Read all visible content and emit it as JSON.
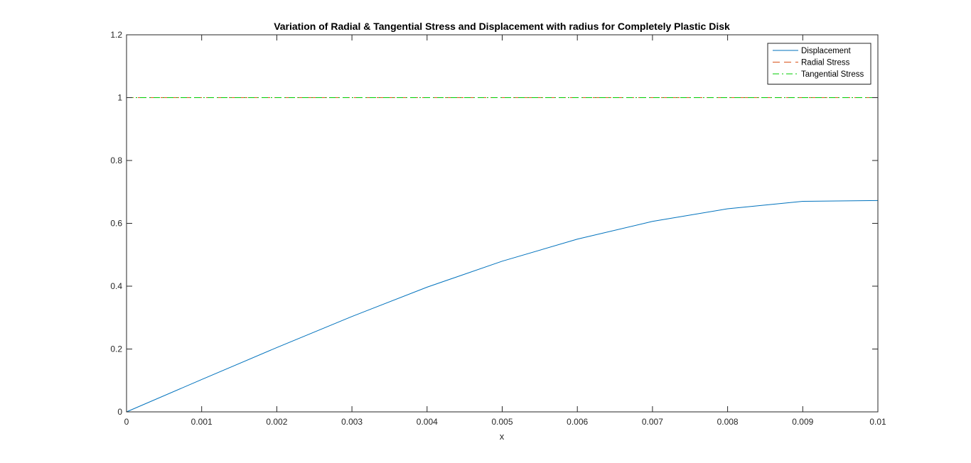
{
  "chart_data": {
    "type": "line",
    "title": "Variation of Radial & Tangential Stress and Displacement with radius for Completely Plastic Disk",
    "xlabel": "x",
    "ylabel": "",
    "xlim": [
      0,
      0.01
    ],
    "ylim": [
      0,
      1.2
    ],
    "xticks": [
      0,
      0.001,
      0.002,
      0.003,
      0.004,
      0.005,
      0.006,
      0.007,
      0.008,
      0.009,
      0.01
    ],
    "xtick_labels": [
      "0",
      "0.001",
      "0.002",
      "0.003",
      "0.004",
      "0.005",
      "0.006",
      "0.007",
      "0.008",
      "0.009",
      "0.01"
    ],
    "yticks": [
      0,
      0.2,
      0.4,
      0.6,
      0.8,
      1,
      1.2
    ],
    "ytick_labels": [
      "0",
      "0.2",
      "0.4",
      "0.6",
      "0.8",
      "1",
      "1.2"
    ],
    "grid": false,
    "legend_position": "top-right",
    "series": [
      {
        "name": "Displacement",
        "color": "#0072BD",
        "style": "solid",
        "x": [
          0,
          0.001,
          0.002,
          0.003,
          0.004,
          0.005,
          0.006,
          0.007,
          0.008,
          0.009,
          0.01
        ],
        "y": [
          0,
          0.1029,
          0.2047,
          0.3036,
          0.3969,
          0.4795,
          0.5497,
          0.6062,
          0.6464,
          0.6701,
          0.6727
        ]
      },
      {
        "name": "Radial Stress",
        "color": "#D95319",
        "style": "dashed",
        "x": [
          0,
          0.001,
          0.002,
          0.003,
          0.004,
          0.005,
          0.006,
          0.007,
          0.008,
          0.009,
          0.01
        ],
        "y": [
          1,
          1,
          1,
          1,
          1,
          1,
          1,
          1,
          1,
          1,
          1
        ]
      },
      {
        "name": "Tangential Stress",
        "color": "#00CC00",
        "style": "dashdot",
        "x": [
          0,
          0.001,
          0.002,
          0.003,
          0.004,
          0.005,
          0.006,
          0.007,
          0.008,
          0.009,
          0.01
        ],
        "y": [
          1,
          1,
          1,
          1,
          1,
          1,
          1,
          1,
          1,
          1,
          1
        ]
      }
    ]
  }
}
